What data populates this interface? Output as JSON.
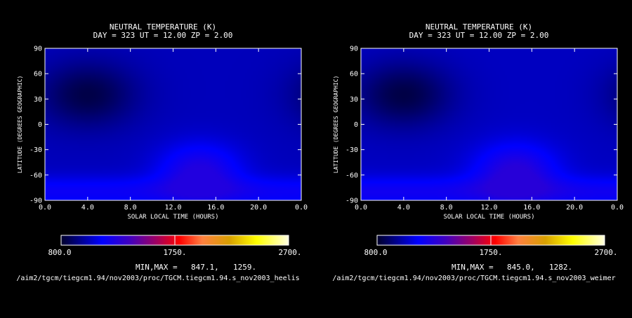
{
  "chart_data": [
    {
      "type": "heatmap",
      "title": "NEUTRAL TEMPERATURE (K)",
      "subtitle": "DAY = 323   UT = 12.00   ZP =    2.00",
      "xlabel": "SOLAR LOCAL TIME (HOURS)",
      "ylabel": "LATITUDE (DEGREES GEOGRAPHIC)",
      "x_ticks": [
        "0.0",
        "4.0",
        "8.0",
        "12.0",
        "16.0",
        "20.0",
        "0.0"
      ],
      "y_ticks": [
        "90",
        "60",
        "30",
        "0",
        "-30",
        "-60",
        "-90"
      ],
      "xlim": [
        0,
        24
      ],
      "ylim": [
        -90,
        90
      ],
      "colorbar": {
        "min_label": "800.0",
        "mid_label": "1750.",
        "max_label": "2700.",
        "range": [
          800,
          2700
        ]
      },
      "minmax_label": "MIN,MAX =",
      "min_value": "847.1,",
      "max_value": "1259.",
      "file_path": "/aim2/tgcm/tiegcm1.94/nov2003/proc/TGCM.tiegcm1.94.s_nov2003_heelis",
      "field": {
        "min": 847.1,
        "max": 1259,
        "cold_spot": {
          "lt": 4.0,
          "lat": 35
        },
        "hot_spot": {
          "lt": 14.5,
          "lat": -55
        },
        "warm_band_lat": -80
      }
    },
    {
      "type": "heatmap",
      "title": "NEUTRAL TEMPERATURE (K)",
      "subtitle": "DAY = 323   UT = 12.00   ZP =    2.00",
      "xlabel": "SOLAR LOCAL TIME (HOURS)",
      "ylabel": "LATITUDE (DEGREES GEOGRAPHIC)",
      "x_ticks": [
        "0.0",
        "4.0",
        "8.0",
        "12.0",
        "16.0",
        "20.0",
        "0.0"
      ],
      "y_ticks": [
        "90",
        "60",
        "30",
        "0",
        "-30",
        "-60",
        "-90"
      ],
      "xlim": [
        0,
        24
      ],
      "ylim": [
        -90,
        90
      ],
      "colorbar": {
        "min_label": "800.0",
        "mid_label": "1750.",
        "max_label": "2700.",
        "range": [
          800,
          2700
        ]
      },
      "minmax_label": "MIN,MAX =",
      "min_value": "845.0,",
      "max_value": "1282.",
      "file_path": "/aim2/tgcm/tiegcm1.94/nov2003/proc/TGCM.tiegcm1.94.s_nov2003_weimer",
      "field": {
        "min": 845.0,
        "max": 1282,
        "cold_spot": {
          "lt": 4.0,
          "lat": 35
        },
        "hot_spot": {
          "lt": 14.5,
          "lat": -55
        },
        "warm_band_lat": -80
      }
    }
  ]
}
